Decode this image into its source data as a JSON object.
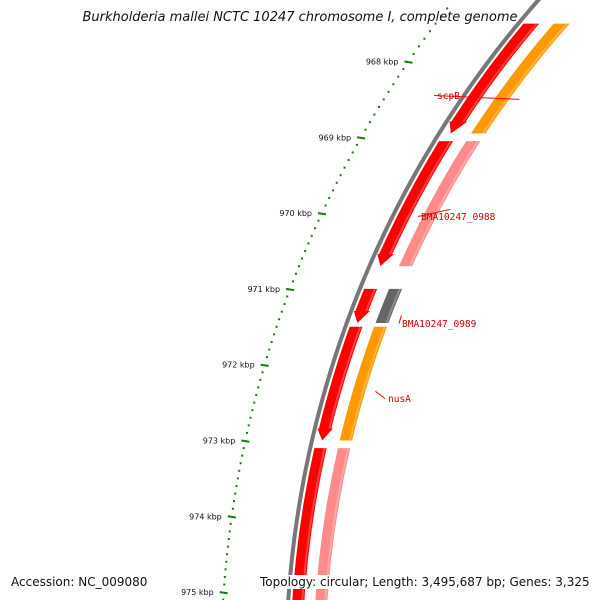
{
  "title": "Burkholderia mallei NCTC 10247 chromosome I, complete genome",
  "accession": "Accession: NC_009080",
  "summary": "Topology: circular; Length: 3,495,687 bp; Genes: 3,325",
  "colors": {
    "backbone": "#777777",
    "cds": "#ff0000",
    "cds_light": "#ff8a8a",
    "gene_orange": "#ff9900",
    "gene_gray": "#666666",
    "tick": "#1b7a12",
    "label": "#cc0000",
    "leader": "#ff0000"
  },
  "ruler": {
    "unit": "kbp",
    "ticks": [
      {
        "kbp": 968,
        "label": "968 kbp"
      },
      {
        "kbp": 969,
        "label": "969 kbp"
      },
      {
        "kbp": 970,
        "label": "970 kbp"
      },
      {
        "kbp": 971,
        "label": "971 kbp"
      },
      {
        "kbp": 972,
        "label": "972 kbp"
      },
      {
        "kbp": 973,
        "label": "973 kbp"
      },
      {
        "kbp": 974,
        "label": "974 kbp"
      },
      {
        "kbp": 975,
        "label": "975 kbp"
      }
    ]
  },
  "features": {
    "forward_cds": [
      {
        "start": 967.5,
        "end": 968.95,
        "arrow": true
      },
      {
        "start": 969.05,
        "end": 970.7,
        "arrow": true
      },
      {
        "start": 971.0,
        "end": 971.45,
        "arrow": true
      },
      {
        "start": 971.5,
        "end": 973.0,
        "arrow": true
      },
      {
        "start": 973.1,
        "end": 975.3,
        "arrow": false
      }
    ],
    "genes": [
      {
        "name": "scpB",
        "start": 967.5,
        "end": 968.95,
        "color": "#ff9900"
      },
      {
        "name": "BMA10247_0988",
        "start": 969.05,
        "end": 970.7,
        "color": "#ff8a8a"
      },
      {
        "name": "BMA10247_0989",
        "start": 971.0,
        "end": 971.45,
        "color": "#666666"
      },
      {
        "name": "nusA",
        "start": 971.5,
        "end": 973.0,
        "color": "#ff9900"
      },
      {
        "name": "",
        "start": 973.1,
        "end": 975.3,
        "color": "#ff8a8a"
      }
    ],
    "labels": [
      {
        "text": "scpB",
        "kbp": 968.5
      },
      {
        "text": "BMA10247_0988",
        "kbp": 969.95
      },
      {
        "text": "BMA10247_0989",
        "kbp": 971.35
      },
      {
        "text": "nusA",
        "kbp": 972.35
      }
    ]
  }
}
